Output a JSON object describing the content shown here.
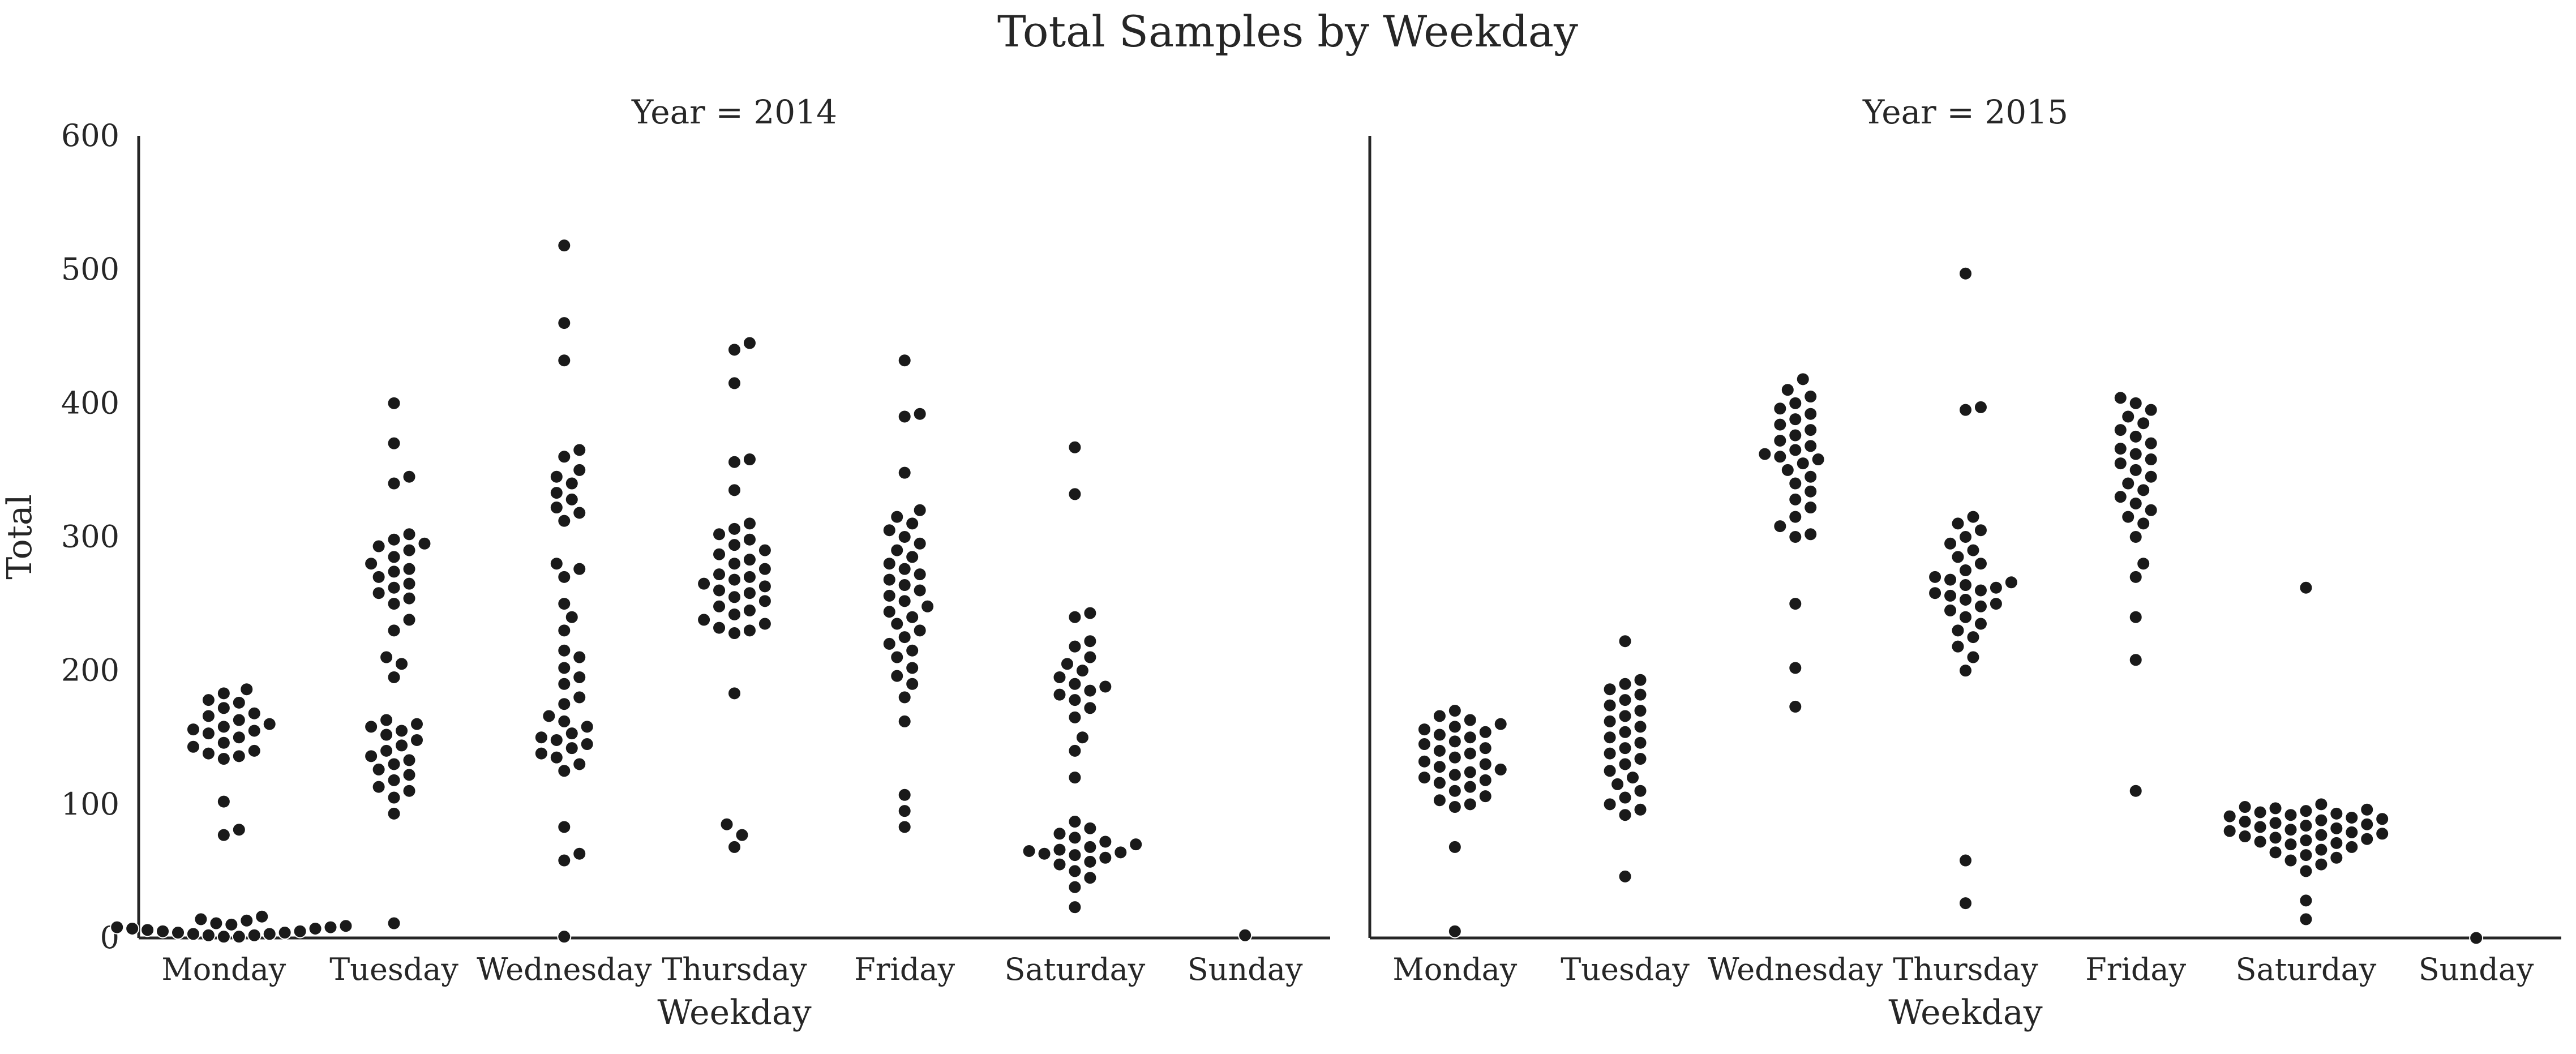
{
  "chart_data": {
    "type": "scatter",
    "subtype": "swarm",
    "title": "Total Samples by Weekday",
    "xlabel": "Weekday",
    "ylabel": "Total",
    "ylim": [
      0,
      600
    ],
    "yticks": [
      0,
      100,
      200,
      300,
      400,
      500,
      600
    ],
    "categories": [
      "Monday",
      "Tuesday",
      "Wednesday",
      "Thursday",
      "Friday",
      "Saturday",
      "Sunday"
    ],
    "grid": false,
    "marker_color": "#1a1a1a",
    "panels": [
      {
        "title": "Year = 2014",
        "points": {
          "Monday": [
            186,
            183,
            178,
            176,
            172,
            168,
            166,
            163,
            160,
            158,
            156,
            155,
            153,
            150,
            146,
            143,
            140,
            138,
            136,
            134,
            102,
            81,
            77,
            16,
            14,
            13,
            11,
            10,
            9,
            8,
            8,
            7,
            7,
            6,
            5,
            5,
            4,
            4,
            3,
            3,
            2,
            2,
            1,
            1
          ],
          "Tuesday": [
            11,
            93,
            105,
            110,
            113,
            118,
            122,
            126,
            130,
            133,
            136,
            140,
            144,
            148,
            152,
            155,
            158,
            160,
            163,
            195,
            205,
            210,
            230,
            238,
            250,
            254,
            258,
            262,
            265,
            270,
            274,
            276,
            280,
            285,
            290,
            293,
            295,
            298,
            302,
            340,
            345,
            370,
            400
          ],
          "Wednesday": [
            1,
            58,
            63,
            83,
            125,
            130,
            135,
            138,
            142,
            145,
            148,
            150,
            153,
            158,
            162,
            166,
            175,
            180,
            190,
            195,
            202,
            210,
            215,
            230,
            240,
            250,
            270,
            276,
            280,
            312,
            318,
            322,
            328,
            333,
            340,
            345,
            350,
            360,
            365,
            432,
            460,
            518
          ],
          "Thursday": [
            68,
            77,
            85,
            183,
            228,
            230,
            232,
            235,
            238,
            242,
            245,
            248,
            252,
            255,
            258,
            260,
            263,
            265,
            268,
            270,
            272,
            276,
            280,
            283,
            287,
            290,
            294,
            298,
            302,
            306,
            310,
            335,
            356,
            358,
            415,
            440,
            445
          ],
          "Friday": [
            83,
            95,
            107,
            162,
            180,
            190,
            196,
            202,
            210,
            215,
            220,
            225,
            230,
            235,
            240,
            244,
            248,
            252,
            256,
            260,
            264,
            268,
            272,
            276,
            280,
            285,
            290,
            295,
            300,
            305,
            310,
            315,
            320,
            348,
            390,
            392,
            432
          ],
          "Saturday": [
            23,
            38,
            45,
            50,
            55,
            57,
            60,
            62,
            63,
            64,
            65,
            66,
            68,
            70,
            72,
            75,
            78,
            82,
            87,
            120,
            140,
            150,
            165,
            172,
            178,
            182,
            185,
            188,
            190,
            195,
            200,
            205,
            210,
            218,
            222,
            240,
            243,
            332,
            367
          ],
          "Sunday": [
            2
          ]
        }
      },
      {
        "title": "Year = 2015",
        "points": {
          "Monday": [
            5,
            68,
            98,
            100,
            103,
            106,
            110,
            113,
            116,
            118,
            120,
            122,
            124,
            126,
            128,
            130,
            132,
            135,
            138,
            140,
            142,
            145,
            147,
            150,
            152,
            154,
            156,
            158,
            160,
            163,
            166,
            170
          ],
          "Tuesday": [
            46,
            92,
            96,
            100,
            105,
            110,
            115,
            120,
            125,
            130,
            134,
            138,
            142,
            146,
            150,
            154,
            158,
            162,
            166,
            170,
            174,
            178,
            182,
            186,
            190,
            193,
            222
          ],
          "Wednesday": [
            173,
            202,
            250,
            300,
            302,
            308,
            315,
            322,
            328,
            334,
            340,
            345,
            350,
            355,
            358,
            360,
            362,
            365,
            368,
            372,
            376,
            380,
            384,
            388,
            392,
            396,
            400,
            405,
            410,
            418
          ],
          "Thursday": [
            26,
            58,
            200,
            210,
            218,
            225,
            230,
            235,
            240,
            245,
            248,
            250,
            253,
            256,
            258,
            260,
            262,
            264,
            266,
            268,
            270,
            275,
            280,
            285,
            290,
            295,
            300,
            305,
            310,
            315,
            395,
            397,
            497
          ],
          "Friday": [
            110,
            208,
            240,
            270,
            280,
            300,
            310,
            315,
            320,
            325,
            330,
            335,
            340,
            345,
            350,
            355,
            358,
            362,
            366,
            370,
            375,
            380,
            385,
            390,
            395,
            400,
            404
          ],
          "Saturday": [
            14,
            28,
            50,
            55,
            58,
            60,
            62,
            64,
            66,
            68,
            70,
            71,
            72,
            73,
            74,
            75,
            76,
            77,
            78,
            79,
            80,
            81,
            82,
            83,
            84,
            85,
            86,
            87,
            88,
            89,
            90,
            91,
            92,
            93,
            94,
            95,
            96,
            97,
            98,
            100,
            262
          ],
          "Sunday": [
            0
          ]
        }
      }
    ]
  }
}
